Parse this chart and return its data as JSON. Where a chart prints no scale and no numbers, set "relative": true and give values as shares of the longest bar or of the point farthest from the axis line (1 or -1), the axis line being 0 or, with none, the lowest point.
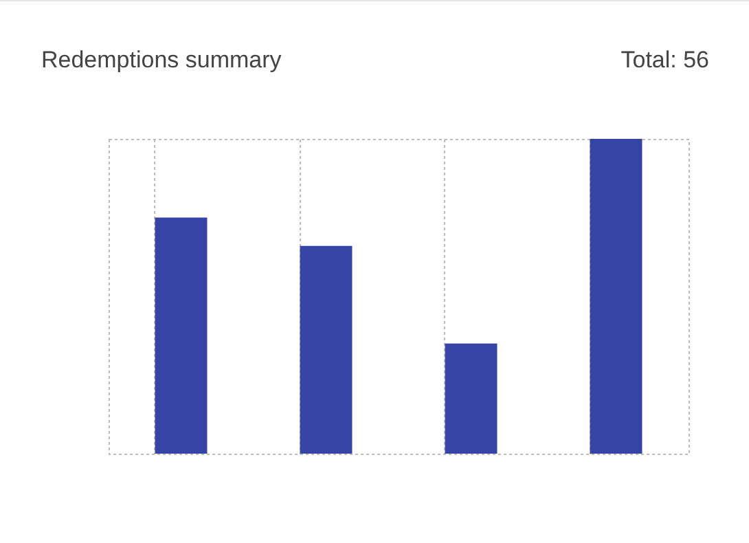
{
  "chart_data": {
    "type": "bar",
    "title": "Redemptions summary",
    "annotations": [
      "Total: 56"
    ],
    "categories": [
      null,
      null,
      null,
      null
    ],
    "values": [
      0.75,
      0.66,
      0.35,
      1
    ],
    "color": "#3644a6",
    "relative": true,
    "grid": "x"
  }
}
